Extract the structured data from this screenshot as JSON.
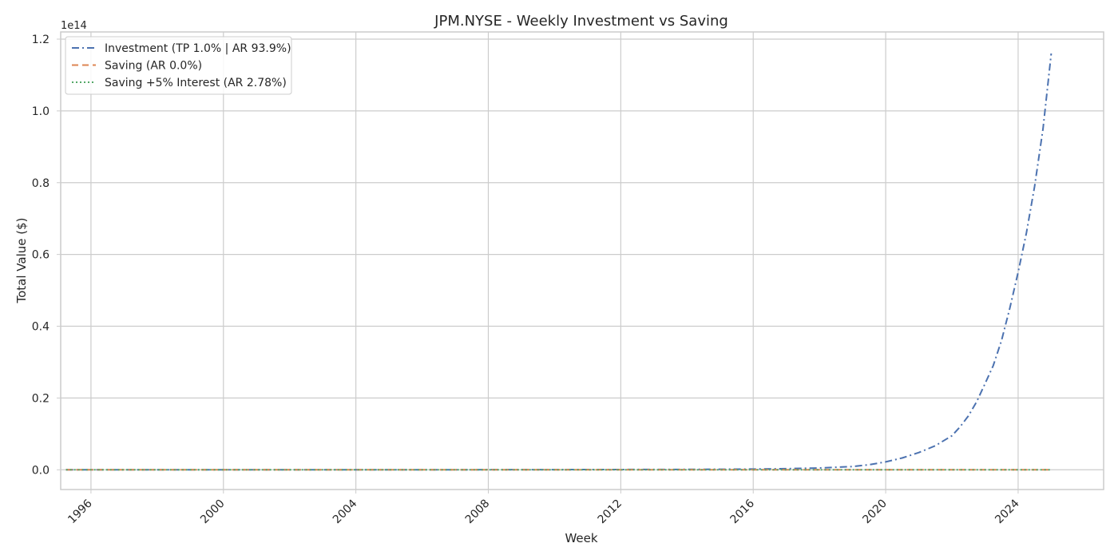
{
  "chart_data": {
    "type": "line",
    "title": "JPM.NYSE - Weekly Investment vs Saving",
    "xlabel": "Week",
    "ylabel": "Total Value ($)",
    "y_exponent_label": "1e14",
    "y_scale": 100000000000000.0,
    "xlim": [
      "1995-02-01",
      "2026-08-01"
    ],
    "ylim": [
      -0.055,
      1.22
    ],
    "x_ticks": [
      "1996",
      "2000",
      "2004",
      "2008",
      "2012",
      "2016",
      "2020",
      "2024"
    ],
    "y_ticks": [
      "0.0",
      "0.2",
      "0.4",
      "0.6",
      "0.8",
      "1.0",
      "1.2"
    ],
    "grid": true,
    "legend_position": "upper-left",
    "series": [
      {
        "name": "Investment (TP 1.0% | AR 93.9%)",
        "color": "#4c72b0",
        "dash": "dash-dot",
        "x": [
          "1995-04-01",
          "2005-01-01",
          "2010-01-01",
          "2014-01-01",
          "2016-01-01",
          "2017-01-01",
          "2018-01-01",
          "2019-01-01",
          "2019-07-01",
          "2020-01-01",
          "2020-07-01",
          "2021-01-01",
          "2021-07-01",
          "2022-01-01",
          "2022-04-01",
          "2022-07-01",
          "2022-10-01",
          "2023-01-01",
          "2023-04-01",
          "2023-07-01",
          "2023-10-01",
          "2024-01-01",
          "2024-04-01",
          "2024-07-01",
          "2024-10-01",
          "2024-12-31"
        ],
        "y": [
          0.0,
          0.0,
          0.0005,
          0.001,
          0.002,
          0.003,
          0.005,
          0.009,
          0.014,
          0.022,
          0.033,
          0.048,
          0.067,
          0.095,
          0.12,
          0.15,
          0.19,
          0.24,
          0.29,
          0.36,
          0.45,
          0.55,
          0.66,
          0.79,
          0.95,
          1.16
        ]
      },
      {
        "name": "Saving (AR 0.0%)",
        "color": "#dd8452",
        "dash": "dashed",
        "x": [
          "1995-04-01",
          "2024-12-31"
        ],
        "y": [
          0.0,
          0.0
        ]
      },
      {
        "name": "Saving +5% Interest (AR 2.78%)",
        "color": "#55a868",
        "dash": "dotted",
        "x": [
          "1995-04-01",
          "2024-12-31"
        ],
        "y": [
          0.0,
          0.0
        ]
      }
    ]
  }
}
